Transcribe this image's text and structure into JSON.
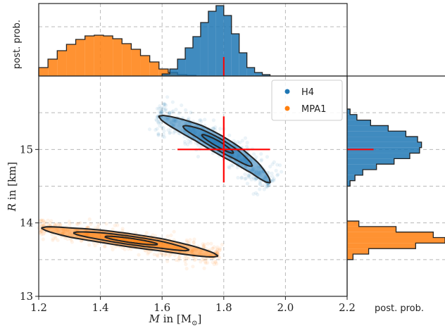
{
  "chart_data": [
    {
      "panel": "main-scatter",
      "type": "scatter",
      "xlabel_math": "M",
      "xlabel_rest": " in [M",
      "xlabel_sub": "⊙",
      "xlabel_end": "]",
      "ylabel_math": "R",
      "ylabel_rest": " in [km]",
      "xlim": [
        1.2,
        2.2
      ],
      "ylim": [
        13.0,
        16.0
      ],
      "x_ticks": [
        "1.2",
        "1.4",
        "1.6",
        "1.8",
        "2.0",
        "2.2"
      ],
      "x_tick_values": [
        1.2,
        1.4,
        1.6,
        1.8,
        2.0,
        2.2
      ],
      "y_ticks": [
        "13",
        "14",
        "15"
      ],
      "y_tick_values": [
        13,
        14,
        15
      ],
      "grid": true,
      "legend_position": "top-right",
      "series": [
        {
          "name": "H4",
          "color": "#1f77b4",
          "ridge": [
            [
              1.59,
              15.45
            ],
            [
              1.66,
              15.33
            ],
            [
              1.72,
              15.22
            ],
            [
              1.78,
              15.08
            ],
            [
              1.84,
              14.93
            ],
            [
              1.9,
              14.75
            ],
            [
              1.95,
              14.55
            ]
          ],
          "width_km": 0.11,
          "contour_levels": [
            1.0,
            0.62,
            0.28
          ]
        },
        {
          "name": "MPA1",
          "color": "#ff7f0e",
          "ridge": [
            [
              1.21,
              13.93
            ],
            [
              1.3,
              13.87
            ],
            [
              1.4,
              13.82
            ],
            [
              1.5,
              13.76
            ],
            [
              1.6,
              13.7
            ],
            [
              1.7,
              13.62
            ],
            [
              1.78,
              13.55
            ]
          ],
          "width_km": 0.08,
          "contour_levels": [
            1.0,
            0.62,
            0.28
          ]
        }
      ],
      "marker": {
        "color": "#ff0000",
        "x": 1.8,
        "y": 15.0,
        "x_range": [
          1.65,
          1.95
        ],
        "y_range": [
          14.55,
          15.45
        ]
      }
    },
    {
      "panel": "top-histogram",
      "type": "bar",
      "ylabel": "post. prob.",
      "xlim": [
        1.2,
        2.2
      ],
      "marker_x": 1.8,
      "series": [
        {
          "name": "MPA1",
          "color": "#ff7f0e",
          "bin_edges": [
            1.2,
            1.23,
            1.26,
            1.29,
            1.32,
            1.35,
            1.38,
            1.41,
            1.44,
            1.47,
            1.5,
            1.53,
            1.56,
            1.59,
            1.62,
            1.65,
            1.68,
            1.71
          ],
          "values": [
            0.12,
            0.24,
            0.36,
            0.45,
            0.52,
            0.57,
            0.58,
            0.57,
            0.53,
            0.46,
            0.38,
            0.29,
            0.2,
            0.1,
            0.05,
            0.02,
            0.01
          ]
        },
        {
          "name": "H4",
          "color": "#1f77b4",
          "bin_edges": [
            1.6,
            1.625,
            1.65,
            1.675,
            1.7,
            1.725,
            1.75,
            1.775,
            1.8,
            1.825,
            1.85,
            1.875,
            1.9,
            1.925,
            1.95
          ],
          "values": [
            0.03,
            0.1,
            0.24,
            0.4,
            0.56,
            0.76,
            0.92,
            1.0,
            0.86,
            0.6,
            0.33,
            0.12,
            0.05,
            0.02
          ]
        }
      ]
    },
    {
      "panel": "right-histogram",
      "type": "bar",
      "xlabel": "post. prob.",
      "ylim": [
        13.0,
        16.0
      ],
      "marker_y": 15.0,
      "series": [
        {
          "name": "H4",
          "color": "#1f77b4",
          "bin_edges": [
            14.5,
            14.575,
            14.65,
            14.725,
            14.8,
            14.875,
            14.95,
            15.025,
            15.1,
            15.175,
            15.25,
            15.325,
            15.4,
            15.475,
            15.55
          ],
          "values": [
            0.03,
            0.08,
            0.16,
            0.3,
            0.48,
            0.64,
            0.74,
            0.76,
            0.72,
            0.6,
            0.42,
            0.24,
            0.1,
            0.03
          ]
        },
        {
          "name": "MPA1",
          "color": "#ff7f0e",
          "bin_edges": [
            13.5,
            13.575,
            13.65,
            13.725,
            13.8,
            13.875,
            13.95,
            14.025
          ],
          "values": [
            0.06,
            0.22,
            0.7,
            1.0,
            0.88,
            0.5,
            0.12
          ]
        }
      ]
    }
  ]
}
